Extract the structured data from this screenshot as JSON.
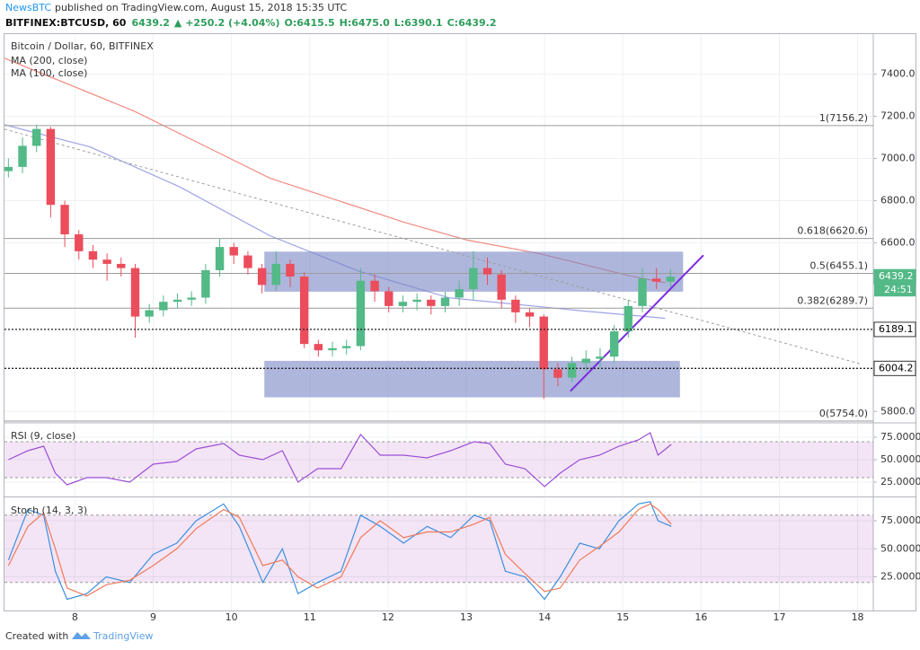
{
  "header": {
    "author": "NewsBTC",
    "published": "published on TradingView.com, August 15, 2018 15:35 UTC",
    "symbol": "BITFINEX:BTCUSD, 60",
    "last": "6439.2",
    "change": "▲ +250.2 (+4.04%)",
    "ohlc": [
      "O:6415.5",
      "H:6475.0",
      "L:6390.1",
      "C:6439.2"
    ]
  },
  "footer": {
    "created": "Created with",
    "brand": "TradingView"
  },
  "chart_data": [
    {
      "type": "candlestick",
      "title": "Bitcoin / Dollar, 60, BITFINEX",
      "x": [
        7.15,
        7.33,
        7.51,
        7.69,
        7.87,
        8.05,
        8.23,
        8.41,
        8.59,
        8.77,
        8.95,
        9.13,
        9.31,
        9.49,
        9.67,
        9.85,
        10.03,
        10.21,
        10.39,
        10.57,
        10.75,
        10.93,
        11.11,
        11.29,
        11.47,
        11.65,
        11.83,
        12.01,
        12.19,
        12.37,
        12.55,
        12.73,
        12.91,
        13.09,
        13.27,
        13.45,
        13.63,
        13.81,
        13.99,
        14.17,
        14.35,
        14.53,
        14.71,
        14.89,
        15.07,
        15.25,
        15.43,
        15.61
      ],
      "open": [
        6940,
        6960,
        7060,
        7140,
        6780,
        6640,
        6560,
        6520,
        6500,
        6480,
        6250,
        6280,
        6320,
        6330,
        6340,
        6470,
        6580,
        6540,
        6480,
        6400,
        6500,
        6440,
        6120,
        6090,
        6100,
        6110,
        6420,
        6370,
        6300,
        6320,
        6330,
        6300,
        6340,
        6380,
        6480,
        6450,
        6330,
        6270,
        6250,
        6000,
        5960,
        6030,
        6050,
        6060,
        6180,
        6300,
        6430,
        6415.5
      ],
      "high": [
        7000,
        7100,
        7160,
        7150,
        6800,
        6660,
        6590,
        6550,
        6530,
        6500,
        6310,
        6350,
        6360,
        6370,
        6500,
        6620,
        6600,
        6560,
        6500,
        6560,
        6520,
        6460,
        6140,
        6130,
        6140,
        6480,
        6450,
        6390,
        6350,
        6360,
        6350,
        6370,
        6420,
        6560,
        6530,
        6470,
        6350,
        6290,
        6260,
        6030,
        6060,
        6090,
        6100,
        6210,
        6330,
        6480,
        6480,
        6475.0
      ],
      "low": [
        6910,
        6930,
        7030,
        6720,
        6580,
        6520,
        6480,
        6420,
        6440,
        6150,
        6220,
        6250,
        6290,
        6300,
        6310,
        6440,
        6500,
        6450,
        6360,
        6370,
        6390,
        6100,
        6060,
        6060,
        6070,
        6090,
        6320,
        6270,
        6270,
        6280,
        6260,
        6270,
        6300,
        6330,
        6400,
        6290,
        6220,
        6200,
        5860,
        5920,
        5940,
        5990,
        6010,
        6030,
        6150,
        6270,
        6380,
        6390.1
      ],
      "close": [
        6960,
        7060,
        7140,
        6780,
        6640,
        6560,
        6520,
        6500,
        6480,
        6250,
        6280,
        6320,
        6330,
        6340,
        6470,
        6580,
        6540,
        6480,
        6400,
        6500,
        6440,
        6120,
        6090,
        6100,
        6110,
        6420,
        6370,
        6300,
        6320,
        6330,
        6300,
        6340,
        6380,
        6480,
        6450,
        6330,
        6270,
        6250,
        6000,
        5960,
        6030,
        6050,
        6060,
        6180,
        6300,
        6430,
        6415.5,
        6439.2
      ],
      "up_color": "#53b987",
      "down_color": "#eb4d5c",
      "overlays": [
        {
          "name": "MA (200, close)",
          "color": "#f28b82",
          "x": [
            7.1,
            8.76,
            10.49,
            12.21,
            13.01,
            13.93,
            15.08,
            15.54
          ],
          "values": [
            7476,
            7224,
            6907,
            6697,
            6613,
            6549,
            6444,
            6410
          ]
        },
        {
          "name": "MA (100, close)",
          "color": "#9fa3e6",
          "x": [
            7.1,
            8.19,
            9.34,
            10.49,
            11.63,
            12.78,
            13.36,
            14.51,
            15.54
          ],
          "values": [
            7160,
            7055,
            6865,
            6634,
            6465,
            6339,
            6318,
            6276,
            6242
          ]
        }
      ],
      "boxes": [
        {
          "x": [
            10.42,
            15.77
          ],
          "y": [
            6368,
            6558
          ]
        },
        {
          "x": [
            10.42,
            15.73
          ],
          "y": [
            5867,
            6040
          ]
        }
      ],
      "box_color": "#7885c4",
      "fib_levels": [
        {
          "label": "1(7156.2)",
          "value": 7156.2
        },
        {
          "label": "0.618(6620.6)",
          "value": 6620.6
        },
        {
          "label": "0.5(6455.1)",
          "value": 6455.1
        },
        {
          "label": "0.382(6289.7)",
          "value": 6289.7
        },
        {
          "label": "0(5754.0)",
          "value": 5754.0
        }
      ],
      "trendlines": [
        {
          "x": [
            7.1,
            18.06
          ],
          "y": [
            7139,
            6023
          ],
          "color": "#9e9e9e",
          "dashed": true
        },
        {
          "x": [
            14.33,
            16.03
          ],
          "y": [
            5896,
            6541
          ],
          "color": "#7b2be0",
          "dashed": false
        }
      ],
      "price_tags": [
        {
          "value": 6439.2,
          "color": "#53b987",
          "text_color": "#ffffff",
          "line": false
        },
        {
          "value": 6189.1,
          "color": "#ffffff",
          "text_color": "#000000",
          "line": true
        },
        {
          "value": 6004.2,
          "color": "#ffffff",
          "text_color": "#000000",
          "line": true
        }
      ],
      "countdown": "24:51",
      "xlim": [
        7.1,
        18.2
      ],
      "ylim": [
        5750,
        7590
      ],
      "yticks": [
        {
          "value": 5800,
          "label": "5800.0"
        },
        {
          "value": 6600,
          "label": "6600.0"
        },
        {
          "value": 6800,
          "label": "6800.0"
        },
        {
          "value": 7000,
          "label": "7000.0"
        },
        {
          "value": 7200,
          "label": "7200.0"
        },
        {
          "value": 7400,
          "label": "7400.0"
        }
      ],
      "grid": true
    },
    {
      "type": "line",
      "title": "RSI (9, close)",
      "x": [
        7.15,
        7.4,
        7.6,
        7.75,
        7.9,
        8.15,
        8.4,
        8.7,
        9.0,
        9.3,
        9.55,
        9.9,
        10.1,
        10.4,
        10.65,
        10.85,
        11.1,
        11.4,
        11.65,
        11.9,
        12.2,
        12.5,
        12.8,
        13.1,
        13.3,
        13.5,
        13.75,
        14.0,
        14.2,
        14.45,
        14.7,
        14.95,
        15.2,
        15.35,
        15.45,
        15.62
      ],
      "series": [
        {
          "color": "#9c4fd6",
          "values": [
            50,
            60,
            65,
            35,
            22,
            30,
            30,
            25,
            45,
            48,
            62,
            68,
            55,
            50,
            60,
            25,
            40,
            40,
            78,
            55,
            55,
            52,
            60,
            70,
            68,
            45,
            40,
            20,
            35,
            50,
            55,
            65,
            72,
            80,
            55,
            67
          ]
        }
      ],
      "band": [
        30,
        70
      ],
      "band_color": "#9c27b0",
      "xlim": [
        7.1,
        18.2
      ],
      "ylim": [
        10,
        90
      ],
      "yticks": [
        {
          "value": 25,
          "label": "25.0000"
        },
        {
          "value": 50,
          "label": "50.0000"
        },
        {
          "value": 75,
          "label": "75.0000"
        }
      ],
      "grid": true
    },
    {
      "type": "line",
      "title": "Stoch (14, 3, 3)",
      "x": [
        7.15,
        7.4,
        7.6,
        7.75,
        7.9,
        8.15,
        8.4,
        8.7,
        9.0,
        9.3,
        9.55,
        9.9,
        10.1,
        10.4,
        10.65,
        10.85,
        11.1,
        11.4,
        11.65,
        11.9,
        12.2,
        12.5,
        12.8,
        13.1,
        13.3,
        13.5,
        13.75,
        14.0,
        14.2,
        14.45,
        14.7,
        14.95,
        15.2,
        15.35,
        15.45,
        15.62
      ],
      "series": [
        {
          "color": "#3c8fe0",
          "values": [
            40,
            85,
            80,
            30,
            5,
            10,
            25,
            20,
            45,
            55,
            75,
            90,
            70,
            20,
            50,
            10,
            20,
            30,
            80,
            70,
            55,
            70,
            60,
            80,
            75,
            30,
            25,
            5,
            25,
            55,
            50,
            75,
            90,
            92,
            75,
            70
          ]
        },
        {
          "color": "#f07a5a",
          "values": [
            35,
            70,
            82,
            50,
            15,
            8,
            18,
            22,
            35,
            50,
            68,
            85,
            78,
            35,
            40,
            25,
            15,
            25,
            60,
            75,
            60,
            65,
            65,
            72,
            78,
            45,
            28,
            12,
            15,
            40,
            52,
            65,
            85,
            90,
            85,
            72
          ]
        }
      ],
      "band": [
        20,
        80
      ],
      "band_color": "#9c27b0",
      "xlim": [
        7.1,
        18.2
      ],
      "ylim": [
        -5,
        95
      ],
      "xticks": [
        8,
        9,
        10,
        11,
        12,
        13,
        14,
        15,
        16,
        17,
        18
      ],
      "yticks": [
        {
          "value": 25,
          "label": "25.0000"
        },
        {
          "value": 50,
          "label": "50.0000"
        },
        {
          "value": 75,
          "label": "75.0000"
        }
      ],
      "grid": true
    }
  ]
}
